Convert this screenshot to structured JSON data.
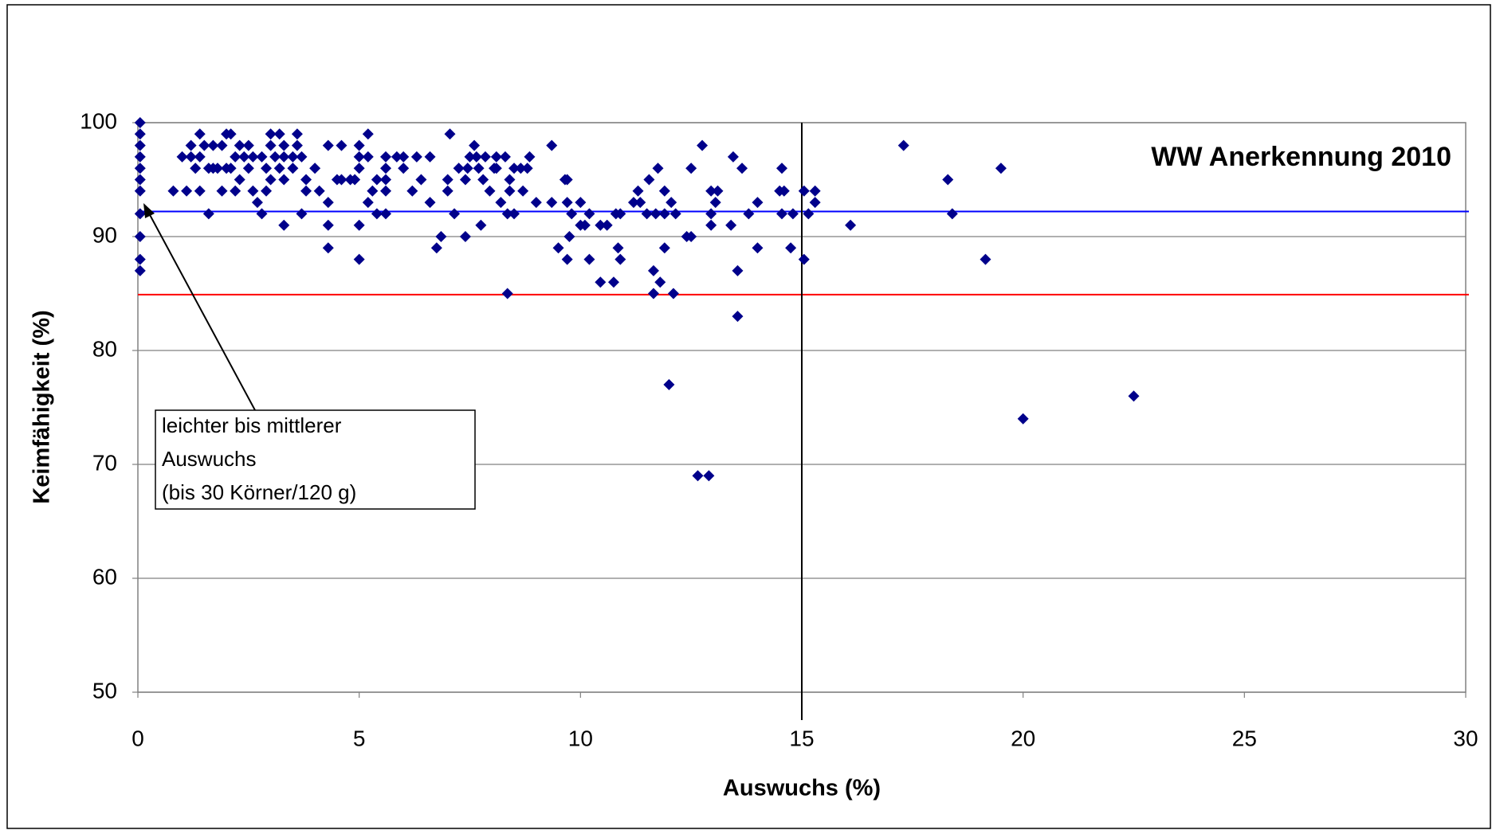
{
  "chart_data": {
    "type": "scatter",
    "title": "WW Anerkennung 2010",
    "xlabel": "Auswuchs (%)",
    "ylabel": "Keimfähigkeit (%)",
    "annotation": [
      "leichter bis mittlerer",
      "Auswuchs",
      "(bis 30 Körner/120 g)"
    ],
    "color": "#00008b",
    "xlim": [
      0,
      30
    ],
    "ylim": [
      50,
      100
    ],
    "xticks": [
      0,
      5,
      10,
      15,
      20,
      25,
      30
    ],
    "yticks": [
      50,
      60,
      70,
      80,
      90,
      100
    ],
    "grid": true,
    "hlines": [
      {
        "value": 92.2,
        "color": "#0000ff"
      },
      {
        "value": 84.9,
        "color": "#ff0000"
      }
    ],
    "vlines": [
      {
        "value": 15,
        "color": "#000000"
      }
    ],
    "x": [
      0.05,
      0.05,
      0.05,
      0.05,
      0.05,
      0.05,
      0.05,
      0.05,
      0.05,
      0.05,
      0.05,
      0.8,
      1.0,
      1.1,
      1.2,
      1.2,
      1.3,
      1.4,
      1.4,
      1.5,
      1.4,
      1.6,
      1.6,
      1.7,
      1.7,
      1.8,
      1.9,
      1.9,
      2.0,
      2.0,
      2.1,
      2.1,
      2.2,
      2.2,
      2.3,
      2.3,
      2.4,
      2.5,
      2.5,
      2.6,
      2.6,
      2.7,
      2.8,
      2.8,
      2.9,
      2.9,
      3.0,
      3.0,
      3.0,
      3.1,
      3.2,
      3.2,
      3.3,
      3.3,
      3.3,
      3.3,
      3.5,
      3.5,
      3.6,
      3.6,
      3.7,
      3.7,
      3.8,
      3.8,
      4.0,
      4.1,
      4.3,
      4.3,
      4.3,
      4.3,
      4.6,
      4.5,
      4.6,
      4.8,
      4.9,
      5.0,
      5.0,
      5.0,
      5.2,
      5.0,
      5.0,
      5.2,
      5.2,
      5.3,
      5.4,
      5.4,
      5.6,
      5.6,
      5.6,
      5.6,
      5.6,
      5.85,
      6.0,
      6.0,
      6.2,
      6.3,
      6.4,
      6.6,
      6.6,
      6.75,
      6.85,
      7.0,
      7.0,
      7.05,
      7.15,
      7.25,
      7.4,
      7.4,
      7.45,
      7.5,
      7.6,
      7.65,
      7.7,
      7.75,
      7.8,
      7.85,
      7.95,
      8.05,
      8.1,
      8.1,
      8.2,
      8.3,
      8.35,
      8.4,
      8.35,
      8.4,
      8.5,
      8.5,
      8.65,
      8.7,
      8.8,
      8.85,
      9.0,
      9.35,
      9.35,
      9.5,
      9.65,
      9.7,
      9.7,
      9.7,
      9.75,
      9.8,
      10.0,
      10.0,
      10.1,
      10.2,
      10.2,
      10.45,
      10.45,
      10.6,
      10.75,
      10.8,
      10.85,
      10.9,
      10.9,
      11.2,
      11.3,
      11.35,
      11.5,
      11.55,
      11.65,
      11.65,
      11.7,
      11.75,
      11.8,
      11.9,
      11.9,
      11.9,
      12.0,
      12.05,
      12.1,
      12.15,
      12.4,
      12.5,
      12.5,
      12.65,
      12.75,
      12.9,
      12.95,
      12.95,
      12.95,
      13.05,
      13.1,
      13.4,
      13.45,
      13.55,
      13.55,
      13.65,
      13.8,
      14.0,
      14.0,
      14.5,
      14.55,
      14.6,
      14.55,
      14.75,
      14.8,
      15.05,
      15.05,
      15.15,
      15.3,
      15.3,
      16.1,
      17.3,
      18.3,
      18.4,
      19.15,
      19.5,
      20.0,
      22.5
    ],
    "values": [
      100,
      99,
      98,
      97,
      96,
      95,
      94,
      92,
      90,
      88,
      87,
      94,
      97,
      94,
      97,
      98,
      96,
      99,
      97,
      98,
      94,
      96,
      92,
      98,
      96,
      96,
      94,
      98,
      96,
      99,
      99,
      96,
      94,
      97,
      95,
      98,
      97,
      96,
      98,
      97,
      94,
      93,
      97,
      92,
      96,
      94,
      99,
      98,
      95,
      97,
      99,
      96,
      98,
      97,
      95,
      91,
      97,
      96,
      99,
      98,
      97,
      92,
      95,
      94,
      96,
      94,
      91,
      89,
      93,
      98,
      98,
      95,
      95,
      95,
      95,
      96,
      97,
      98,
      97,
      91,
      88,
      99,
      93,
      94,
      95,
      92,
      92,
      96,
      97,
      94,
      95,
      97,
      96,
      97,
      94,
      97,
      95,
      97,
      93,
      89,
      90,
      94,
      95,
      99,
      92,
      96,
      95,
      90,
      96,
      97,
      98,
      97,
      96,
      91,
      95,
      97,
      94,
      96,
      97,
      96,
      93,
      97,
      92,
      95,
      85,
      94,
      92,
      96,
      96,
      94,
      96,
      97,
      93,
      93,
      98,
      89,
      95,
      88,
      95,
      93,
      90,
      92,
      91,
      93,
      91,
      92,
      88,
      86,
      91,
      91,
      86,
      92,
      89,
      88,
      92,
      93,
      94,
      93,
      92,
      95,
      87,
      85,
      92,
      96,
      86,
      89,
      94,
      92,
      77,
      93,
      85,
      92,
      90,
      90,
      96,
      69,
      98,
      69,
      91,
      92,
      94,
      93,
      94,
      91,
      97,
      83,
      87,
      96,
      92,
      89,
      93,
      94,
      96,
      94,
      92,
      89,
      92,
      88,
      94,
      92,
      93,
      94,
      91,
      98,
      95,
      92,
      88,
      96,
      74,
      76
    ]
  }
}
